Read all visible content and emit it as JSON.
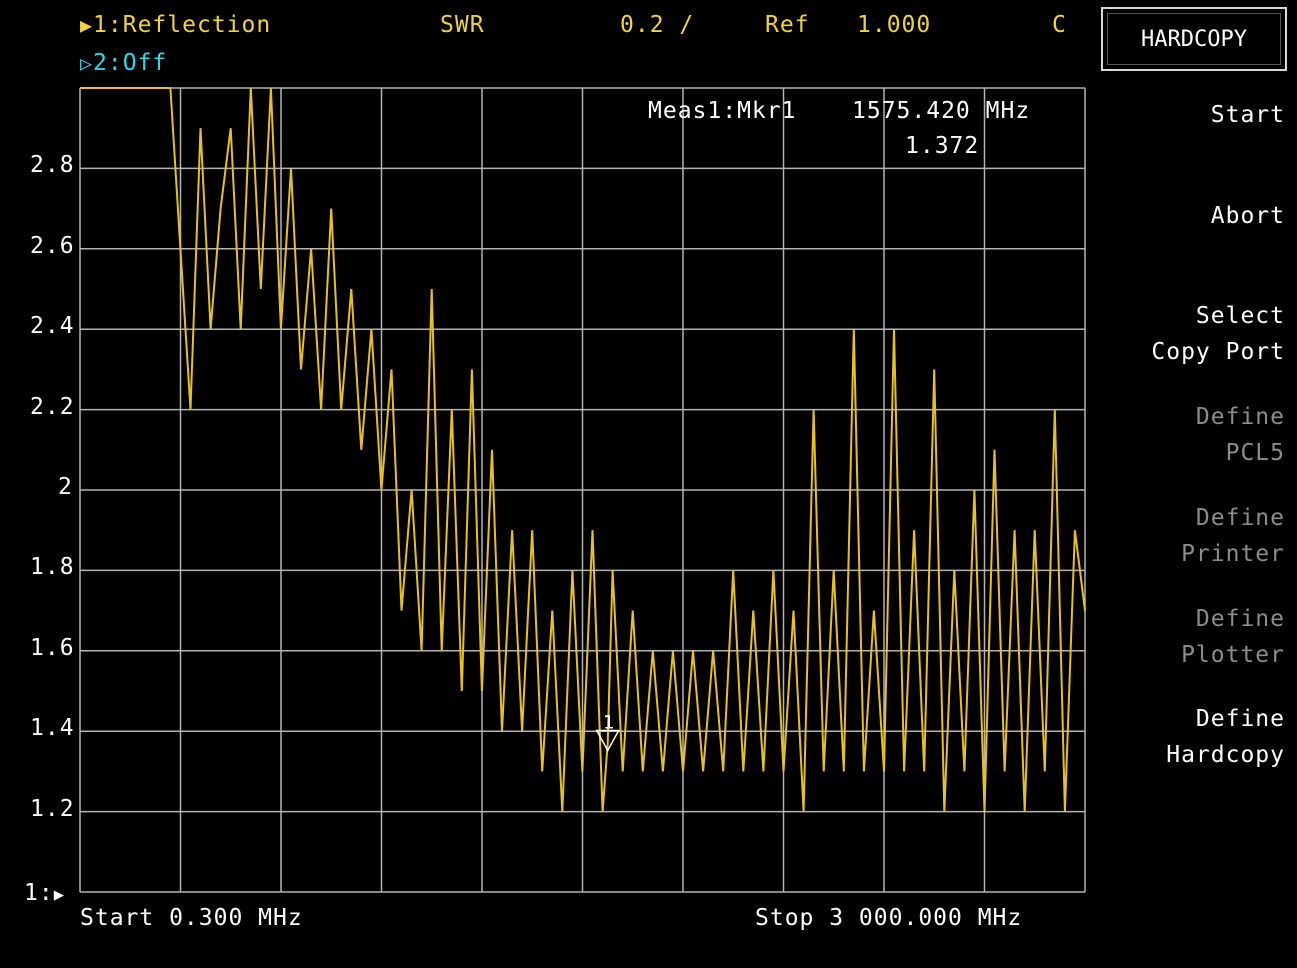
{
  "header": {
    "trace1": "1:Reflection",
    "format": "SWR",
    "scale": "0.2 /",
    "ref_label": "Ref",
    "ref_value": "1.000",
    "cal_flag": "C",
    "trace2": "2:Off"
  },
  "marker": {
    "readout_label": "Meas1:Mkr1",
    "frequency": "1575.420 MHz",
    "value": "1.372",
    "marker_number": "1"
  },
  "footer": {
    "start": "Start 0.300 MHz",
    "stop": "Stop 3 000.000 MHz"
  },
  "ref_position_label": "1:",
  "softkeys": {
    "title": "HARDCOPY",
    "items": [
      {
        "lines": "Start",
        "enabled": true
      },
      {
        "lines": "Abort",
        "enabled": true
      },
      {
        "lines": "Select\nCopy Port",
        "enabled": true
      },
      {
        "lines": "Define\nPCL5",
        "enabled": false
      },
      {
        "lines": "Define\nPrinter",
        "enabled": false
      },
      {
        "lines": "Define\nPlotter",
        "enabled": false
      },
      {
        "lines": "Define\nHardcopy",
        "enabled": true
      }
    ]
  },
  "colors": {
    "trace": "#e8c020",
    "grid": "#b4b4b4",
    "active_trace_label": "#f2d33c",
    "inactive_trace_label": "#33d6e6"
  },
  "chart_data": {
    "type": "line",
    "title": "",
    "xlabel": "",
    "ylabel": "",
    "y_ticks": [
      "1.2",
      "1.4",
      "1.6",
      "1.8",
      "2",
      "2.2",
      "2.4",
      "2.6",
      "2.8"
    ],
    "ylim": [
      1.0,
      3.0
    ],
    "xlim_mhz": [
      0.3,
      3000.0
    ],
    "grid": true,
    "series": [
      {
        "x_mhz": [
          0.3,
          150,
          270,
          300,
          330,
          360,
          390,
          420,
          450,
          480,
          510,
          540,
          570,
          600,
          630,
          660,
          690,
          720,
          750,
          780,
          810,
          840,
          870,
          900,
          930,
          960,
          990,
          1020,
          1050,
          1080,
          1110,
          1140,
          1170,
          1200,
          1230,
          1260,
          1290,
          1320,
          1350,
          1380,
          1410,
          1440,
          1470,
          1500,
          1530,
          1560,
          1575.42,
          1590,
          1620,
          1650,
          1680,
          1710,
          1740,
          1770,
          1800,
          1830,
          1860,
          1890,
          1920,
          1950,
          1980,
          2010,
          2040,
          2070,
          2100,
          2130,
          2160,
          2190,
          2220,
          2250,
          2280,
          2310,
          2340,
          2370,
          2400,
          2430,
          2460,
          2490,
          2520,
          2550,
          2580,
          2610,
          2640,
          2670,
          2700,
          2730,
          2760,
          2790,
          2820,
          2850,
          2880,
          2910,
          2940,
          2970,
          3000
        ],
        "values": [
          3.0,
          3.0,
          3.0,
          2.6,
          2.2,
          2.9,
          2.4,
          2.7,
          2.9,
          2.4,
          3.0,
          2.5,
          3.0,
          2.4,
          2.8,
          2.3,
          2.6,
          2.2,
          2.7,
          2.2,
          2.5,
          2.1,
          2.4,
          2.0,
          2.3,
          1.7,
          2.0,
          1.6,
          2.5,
          1.6,
          2.2,
          1.5,
          2.3,
          1.5,
          2.1,
          1.4,
          1.9,
          1.4,
          1.9,
          1.3,
          1.7,
          1.2,
          1.8,
          1.3,
          1.9,
          1.2,
          1.37,
          1.8,
          1.3,
          1.7,
          1.3,
          1.6,
          1.3,
          1.6,
          1.3,
          1.6,
          1.3,
          1.6,
          1.3,
          1.8,
          1.3,
          1.7,
          1.3,
          1.8,
          1.3,
          1.7,
          1.2,
          2.2,
          1.3,
          1.8,
          1.3,
          2.4,
          1.3,
          1.7,
          1.3,
          2.4,
          1.3,
          1.9,
          1.3,
          2.3,
          1.2,
          1.8,
          1.3,
          2.0,
          1.2,
          2.1,
          1.3,
          1.9,
          1.2,
          1.9,
          1.3,
          2.2,
          1.2,
          1.9,
          1.7
        ]
      }
    ]
  }
}
